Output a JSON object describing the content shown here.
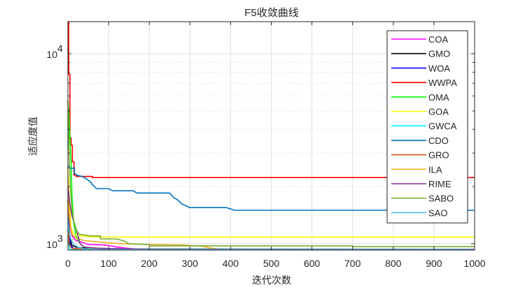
{
  "chart_data": {
    "type": "line",
    "title": "F5收敛曲线",
    "xlabel": "迭代次数",
    "ylabel": "适应度值",
    "xlim": [
      0,
      1000
    ],
    "ylim": [
      926,
      14760
    ],
    "yscale": "log",
    "grid": true,
    "legend_position": "northeast-inside",
    "x_ticks": [
      0,
      100,
      200,
      300,
      400,
      500,
      600,
      700,
      800,
      900,
      1000
    ],
    "x_tick_labels": [
      "0",
      "100",
      "200",
      "300",
      "400",
      "500",
      "600",
      "700",
      "800",
      "900",
      "1000"
    ],
    "y_ticks": [
      1000,
      10000
    ],
    "y_tick_labels": [
      {
        "base": "10",
        "exp": "3"
      },
      {
        "base": "10",
        "exp": "4"
      }
    ],
    "series": [
      {
        "name": "COA",
        "color": "#ff00ff",
        "points": [
          [
            0,
            1500
          ],
          [
            5,
            1250
          ],
          [
            10,
            1100
          ],
          [
            20,
            1040
          ],
          [
            40,
            1010
          ],
          [
            50,
            990
          ],
          [
            90,
            985
          ],
          [
            110,
            970
          ],
          [
            130,
            955
          ],
          [
            150,
            945
          ],
          [
            170,
            935
          ],
          [
            200,
            930
          ],
          [
            1000,
            930
          ]
        ]
      },
      {
        "name": "GMO",
        "color": "#000000",
        "points": [
          [
            0,
            1700
          ],
          [
            3,
            1200
          ],
          [
            6,
            1050
          ],
          [
            10,
            980
          ],
          [
            20,
            960
          ],
          [
            40,
            950
          ],
          [
            80,
            945
          ],
          [
            120,
            940
          ],
          [
            160,
            935
          ],
          [
            200,
            932
          ],
          [
            1000,
            930
          ]
        ]
      },
      {
        "name": "WOA",
        "color": "#0000ff",
        "points": [
          [
            0,
            1300
          ],
          [
            3,
            1100
          ],
          [
            6,
            1000
          ],
          [
            10,
            960
          ],
          [
            15,
            940
          ],
          [
            30,
            935
          ],
          [
            80,
            932
          ],
          [
            1000,
            930
          ]
        ]
      },
      {
        "name": "WWPA",
        "color": "#ff0000",
        "points": [
          [
            0,
            14760
          ],
          [
            2,
            14760
          ],
          [
            2,
            7800
          ],
          [
            5,
            7800
          ],
          [
            5,
            3600
          ],
          [
            8,
            3600
          ],
          [
            8,
            3300
          ],
          [
            11,
            3300
          ],
          [
            11,
            2700
          ],
          [
            15,
            2700
          ],
          [
            15,
            2300
          ],
          [
            20,
            2300
          ],
          [
            20,
            2260
          ],
          [
            60,
            2260
          ],
          [
            60,
            2230
          ],
          [
            1000,
            2230
          ]
        ]
      },
      {
        "name": "OMA",
        "color": "#00ff00",
        "points": [
          [
            0,
            5600
          ],
          [
            2,
            5000
          ],
          [
            5,
            3600
          ],
          [
            8,
            2700
          ],
          [
            10,
            1800
          ],
          [
            14,
            1300
          ],
          [
            20,
            1100
          ],
          [
            30,
            1000
          ],
          [
            40,
            960
          ],
          [
            60,
            945
          ],
          [
            100,
            940
          ],
          [
            1000,
            935
          ]
        ]
      },
      {
        "name": "GOA",
        "color": "#ffff00",
        "points": [
          [
            0,
            2500
          ],
          [
            4,
            1600
          ],
          [
            8,
            1200
          ],
          [
            15,
            1120
          ],
          [
            30,
            1100
          ],
          [
            50,
            1090
          ],
          [
            85,
            1085
          ],
          [
            1000,
            1085
          ]
        ]
      },
      {
        "name": "GWCA",
        "color": "#00ffff",
        "points": [
          [
            0,
            1200
          ],
          [
            2,
            1000
          ],
          [
            4,
            940
          ],
          [
            8,
            930
          ],
          [
            1000,
            928
          ]
        ]
      },
      {
        "name": "CDO",
        "color": "#0072bd",
        "points": [
          [
            0,
            2600
          ],
          [
            3,
            2500
          ],
          [
            16,
            2500
          ],
          [
            16,
            2350
          ],
          [
            22,
            2300
          ],
          [
            35,
            2260
          ],
          [
            45,
            2200
          ],
          [
            55,
            2120
          ],
          [
            60,
            2050
          ],
          [
            70,
            1950
          ],
          [
            100,
            1950
          ],
          [
            110,
            1900
          ],
          [
            160,
            1900
          ],
          [
            170,
            1850
          ],
          [
            250,
            1850
          ],
          [
            260,
            1750
          ],
          [
            270,
            1700
          ],
          [
            280,
            1620
          ],
          [
            300,
            1550
          ],
          [
            390,
            1550
          ],
          [
            410,
            1500
          ],
          [
            1000,
            1500
          ]
        ]
      },
      {
        "name": "GRO",
        "color": "#d95319",
        "points": [
          [
            0,
            1700
          ],
          [
            2,
            1200
          ],
          [
            3,
            1000
          ],
          [
            6,
            960
          ],
          [
            10,
            945
          ],
          [
            30,
            940
          ],
          [
            100,
            935
          ],
          [
            1000,
            930
          ]
        ]
      },
      {
        "name": "ILA",
        "color": "#edb120",
        "points": [
          [
            0,
            2200
          ],
          [
            3,
            1500
          ],
          [
            6,
            1250
          ],
          [
            10,
            1120
          ],
          [
            20,
            1070
          ],
          [
            40,
            1040
          ],
          [
            60,
            1030
          ],
          [
            100,
            1010
          ],
          [
            140,
            1000
          ],
          [
            200,
            990
          ],
          [
            280,
            985
          ],
          [
            330,
            970
          ],
          [
            350,
            950
          ],
          [
            380,
            932
          ],
          [
            1000,
            930
          ]
        ]
      },
      {
        "name": "RIME",
        "color": "#7e2f8e",
        "points": [
          [
            0,
            2000
          ],
          [
            5,
            1600
          ],
          [
            10,
            1400
          ],
          [
            15,
            1300
          ],
          [
            20,
            1200
          ],
          [
            25,
            1100
          ],
          [
            30,
            1000
          ],
          [
            40,
            960
          ],
          [
            80,
            945
          ],
          [
            200,
            938
          ],
          [
            1000,
            935
          ]
        ]
      },
      {
        "name": "SABO",
        "color": "#77ac30",
        "points": [
          [
            0,
            5700
          ],
          [
            3,
            3000
          ],
          [
            6,
            2000
          ],
          [
            10,
            1500
          ],
          [
            15,
            1300
          ],
          [
            20,
            1200
          ],
          [
            25,
            1140
          ],
          [
            30,
            1120
          ],
          [
            55,
            1100
          ],
          [
            80,
            1100
          ],
          [
            80,
            1060
          ],
          [
            120,
            1060
          ],
          [
            140,
            1030
          ],
          [
            150,
            1000
          ],
          [
            200,
            990
          ],
          [
            200,
            975
          ],
          [
            700,
            975
          ],
          [
            700,
            965
          ],
          [
            1000,
            965
          ]
        ]
      },
      {
        "name": "SAO",
        "color": "#4dbeee",
        "points": [
          [
            0,
            1400
          ],
          [
            3,
            1150
          ],
          [
            8,
            1050
          ],
          [
            15,
            990
          ],
          [
            25,
            960
          ],
          [
            40,
            940
          ],
          [
            80,
            932
          ],
          [
            1000,
            930
          ]
        ]
      }
    ]
  }
}
